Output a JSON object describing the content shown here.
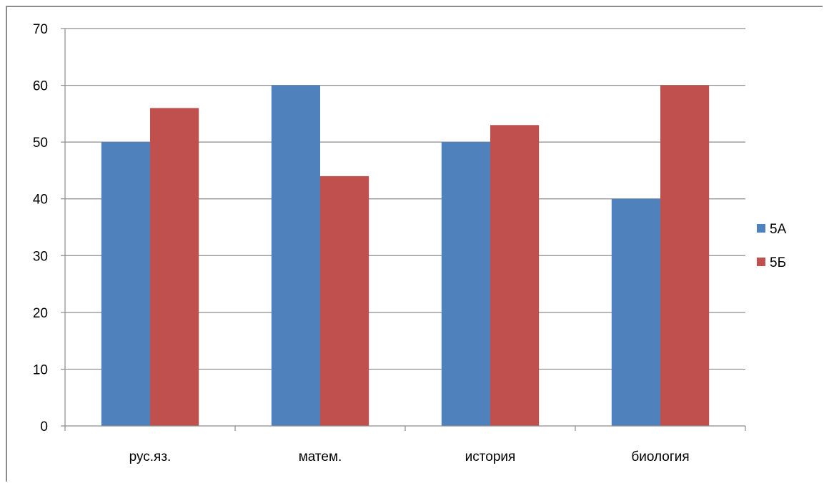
{
  "chart_data": {
    "type": "bar",
    "categories": [
      "рус.яз.",
      "матем.",
      "история",
      "биология"
    ],
    "series": [
      {
        "name": "5А",
        "values": [
          50,
          60,
          50,
          40
        ],
        "color": "#4F81BD"
      },
      {
        "name": "5Б",
        "values": [
          56,
          44,
          53,
          60
        ],
        "color": "#C0504D"
      }
    ],
    "title": "",
    "xlabel": "",
    "ylabel": "",
    "ylim": [
      0,
      70
    ],
    "yticks": [
      0,
      10,
      20,
      30,
      40,
      50,
      60,
      70
    ],
    "grid": true,
    "legend_position": "right",
    "colors": {
      "gridline": "#8c8c8c",
      "axis": "#8c8c8c",
      "frame": "#8c8c8c"
    }
  }
}
